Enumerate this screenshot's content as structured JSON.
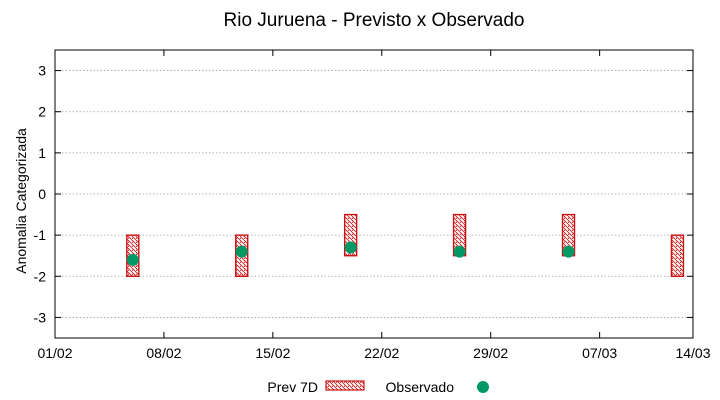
{
  "chart_data": {
    "type": "scatter",
    "title": "Rio Juruena - Previsto x Observado",
    "ylabel": "Anomalia Categorizada",
    "xlabel": "",
    "ylim": [
      -3.5,
      3.5
    ],
    "yticks": [
      3,
      2,
      1,
      0,
      -1,
      -2,
      -3
    ],
    "ytick_labels": [
      "3",
      "2",
      "1",
      "0",
      "-1",
      "-2",
      "-3"
    ],
    "xlim_days": [
      0,
      41
    ],
    "xticks_days": [
      0,
      7,
      14,
      21,
      28,
      35,
      42
    ],
    "xtick_labels": [
      "01/02",
      "08/02",
      "15/02",
      "22/02",
      "29/02",
      "07/03",
      "14/03"
    ],
    "grid": true,
    "series": [
      {
        "name": "Prev 7D",
        "kind": "range-bar",
        "color": "#cc1111",
        "x_days": [
          5,
          12,
          19,
          26,
          33,
          40
        ],
        "low": [
          -2,
          -2,
          -1.5,
          -1.5,
          -1.5,
          -2
        ],
        "high": [
          -1,
          -1,
          -0.5,
          -0.5,
          -0.5,
          -1
        ]
      },
      {
        "name": "Observado",
        "kind": "points",
        "color": "#009966",
        "x_days": [
          5,
          12,
          19,
          26,
          33
        ],
        "values": [
          -1.6,
          -1.4,
          -1.3,
          -1.4,
          -1.4
        ]
      }
    ],
    "legend": {
      "position": "bottom-center",
      "entries": [
        "Prev 7D",
        "Observado"
      ]
    }
  }
}
